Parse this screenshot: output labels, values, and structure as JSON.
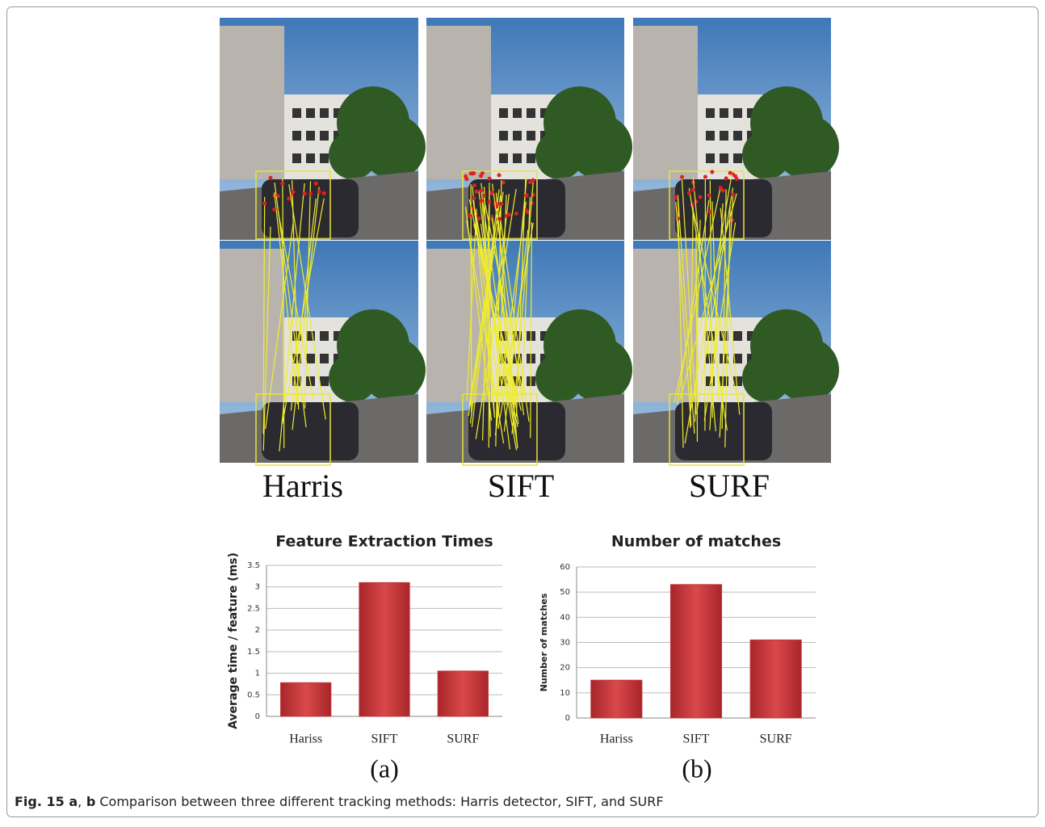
{
  "figure": {
    "image_labels": [
      "Harris",
      "SIFT",
      "SURF"
    ],
    "panel_labels": [
      "(a)",
      "(b)"
    ],
    "caption": [
      {
        "text": "Fig. 15 a",
        "bold": true
      },
      {
        "text": ",",
        "bold": false
      },
      {
        "text": " b",
        "bold": true
      },
      {
        "text": " Comparison between three different tracking methods: Harris detector, SIFT, and SURF",
        "bold": false
      }
    ]
  },
  "chart_data": [
    {
      "type": "bar",
      "title": "Feature Extraction Times",
      "y_label": "Average time / feature (ms)",
      "categories": [
        "Hariss",
        "SIFT",
        "SURF"
      ],
      "values": [
        0.78,
        3.1,
        1.05
      ],
      "color": "#c0393b",
      "ylim": [
        0,
        3.5
      ],
      "yticks": [
        0,
        0.5,
        1,
        1.5,
        2,
        2.5,
        3,
        3.5
      ],
      "grid": true
    },
    {
      "type": "bar",
      "title": "Number of matches",
      "y_label": "Number of matches",
      "categories": [
        "Hariss",
        "SIFT",
        "SURF"
      ],
      "values": [
        15,
        53,
        31
      ],
      "color": "#c0393b",
      "ylim": [
        0,
        60
      ],
      "yticks": [
        0,
        10,
        20,
        30,
        40,
        50,
        60
      ],
      "grid": true
    }
  ]
}
